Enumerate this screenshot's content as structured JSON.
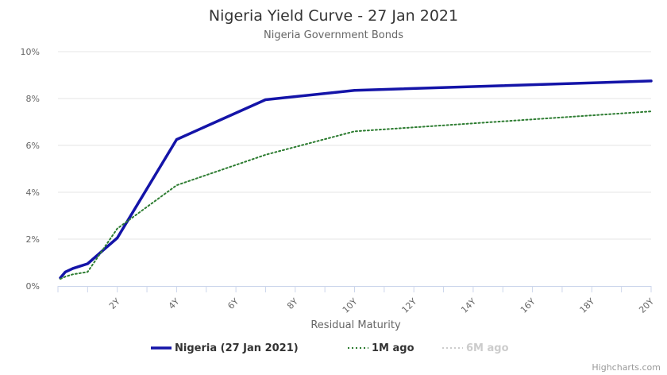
{
  "chart_data": {
    "type": "line",
    "title": "Nigeria Yield Curve - 27 Jan 2021",
    "subtitle": "Nigeria Government Bonds",
    "xlabel": "Residual Maturity",
    "ylabel": "",
    "xlim": [
      0,
      20
    ],
    "ylim": [
      0,
      10
    ],
    "x_ticks": [
      {
        "value": 2,
        "label": "2Y"
      },
      {
        "value": 4,
        "label": "4Y"
      },
      {
        "value": 6,
        "label": "6Y"
      },
      {
        "value": 8,
        "label": "8Y"
      },
      {
        "value": 10,
        "label": "10Y"
      },
      {
        "value": 12,
        "label": "12Y"
      },
      {
        "value": 14,
        "label": "14Y"
      },
      {
        "value": 16,
        "label": "16Y"
      },
      {
        "value": 18,
        "label": "18Y"
      },
      {
        "value": 20,
        "label": "20Y"
      }
    ],
    "y_ticks": [
      {
        "value": 0,
        "label": "0%"
      },
      {
        "value": 2,
        "label": "2%"
      },
      {
        "value": 4,
        "label": "4%"
      },
      {
        "value": 6,
        "label": "6%"
      },
      {
        "value": 8,
        "label": "8%"
      },
      {
        "value": 10,
        "label": "10%"
      }
    ],
    "grid": "horizontal",
    "legend_position": "bottom",
    "series": [
      {
        "name": "Nigeria (27 Jan 2021)",
        "color": "#1414a8",
        "style": "solid",
        "visible": true,
        "x": [
          0.08,
          0.25,
          0.5,
          0.75,
          1,
          2,
          4,
          7,
          10,
          20
        ],
        "y": [
          0.35,
          0.6,
          0.75,
          0.85,
          0.95,
          2.05,
          6.25,
          7.95,
          8.35,
          8.75
        ]
      },
      {
        "name": "1M ago",
        "color": "#2e7d32",
        "style": "dotted",
        "visible": true,
        "x": [
          0.08,
          0.25,
          0.5,
          0.75,
          1,
          2,
          4,
          7,
          10,
          20
        ],
        "y": [
          0.3,
          0.4,
          0.5,
          0.55,
          0.6,
          2.45,
          4.3,
          5.6,
          6.6,
          7.45
        ]
      },
      {
        "name": "6M ago",
        "color": "#cccccc",
        "style": "dotted",
        "visible": false,
        "x": [],
        "y": []
      }
    ],
    "credits": "Highcharts.com"
  }
}
